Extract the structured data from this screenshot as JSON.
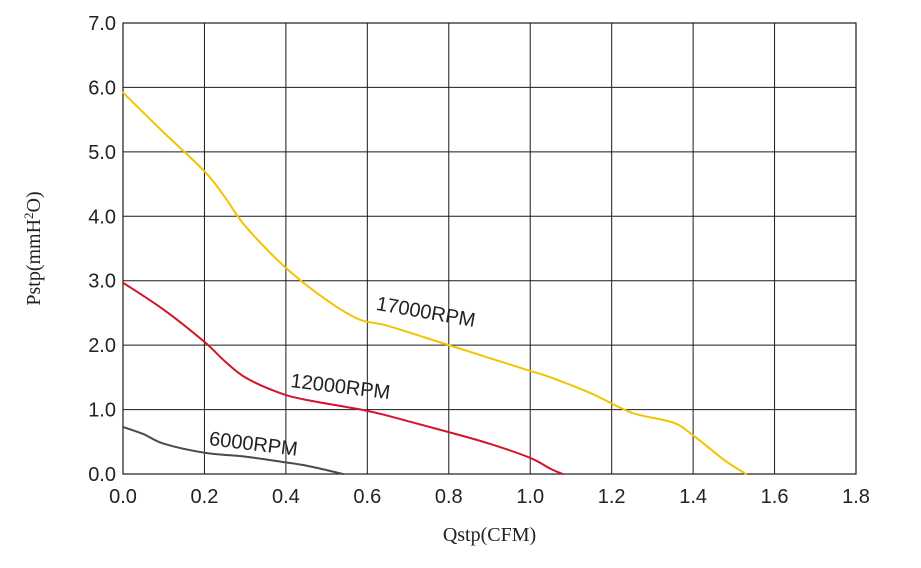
{
  "chart_data": {
    "type": "line",
    "title": "",
    "xlabel": "Qstp(CFM)",
    "ylabel_main": "Pstp(mmH",
    "ylabel_sup": "2",
    "ylabel_tail": "O)",
    "xlim": [
      0,
      1.8
    ],
    "ylim": [
      0,
      7
    ],
    "xticks": [
      "0.0",
      "0.2",
      "0.4",
      "0.6",
      "0.8",
      "1.0",
      "1.2",
      "1.4",
      "1.6",
      "1.8"
    ],
    "yticks": [
      "0.0",
      "1.0",
      "2.0",
      "3.0",
      "4.0",
      "5.0",
      "6.0",
      "7.0"
    ],
    "grid": true,
    "series": [
      {
        "name": "17000RPM",
        "color": "#f2c400",
        "x": [
          0.0,
          0.1,
          0.2,
          0.25,
          0.3,
          0.4,
          0.5,
          0.58,
          0.65,
          0.8,
          0.9,
          1.0,
          1.05,
          1.15,
          1.25,
          1.35,
          1.4,
          1.48,
          1.53
        ],
        "y": [
          5.92,
          5.3,
          4.7,
          4.3,
          3.85,
          3.2,
          2.7,
          2.4,
          2.3,
          2.0,
          1.8,
          1.6,
          1.5,
          1.25,
          0.95,
          0.8,
          0.6,
          0.2,
          0.0
        ],
        "label": "17000RPM",
        "label_at": [
          0.62,
          2.55
        ],
        "label_angle": 10
      },
      {
        "name": "12000RPM",
        "color": "#d41428",
        "x": [
          0.0,
          0.1,
          0.2,
          0.25,
          0.3,
          0.38,
          0.45,
          0.6,
          0.7,
          0.8,
          0.9,
          1.0,
          1.05,
          1.08
        ],
        "y": [
          2.97,
          2.55,
          2.05,
          1.75,
          1.5,
          1.27,
          1.15,
          0.98,
          0.82,
          0.65,
          0.47,
          0.25,
          0.08,
          0.0
        ],
        "label": "12000RPM",
        "label_at": [
          0.41,
          1.35
        ],
        "label_angle": 7
      },
      {
        "name": "6000RPM",
        "color": "#4a4a4a",
        "x": [
          0.0,
          0.05,
          0.1,
          0.2,
          0.3,
          0.4,
          0.45,
          0.5,
          0.54
        ],
        "y": [
          0.73,
          0.62,
          0.47,
          0.33,
          0.27,
          0.18,
          0.13,
          0.06,
          0.0
        ],
        "label": "6000RPM",
        "label_at": [
          0.21,
          0.45
        ],
        "label_angle": 7
      }
    ]
  }
}
